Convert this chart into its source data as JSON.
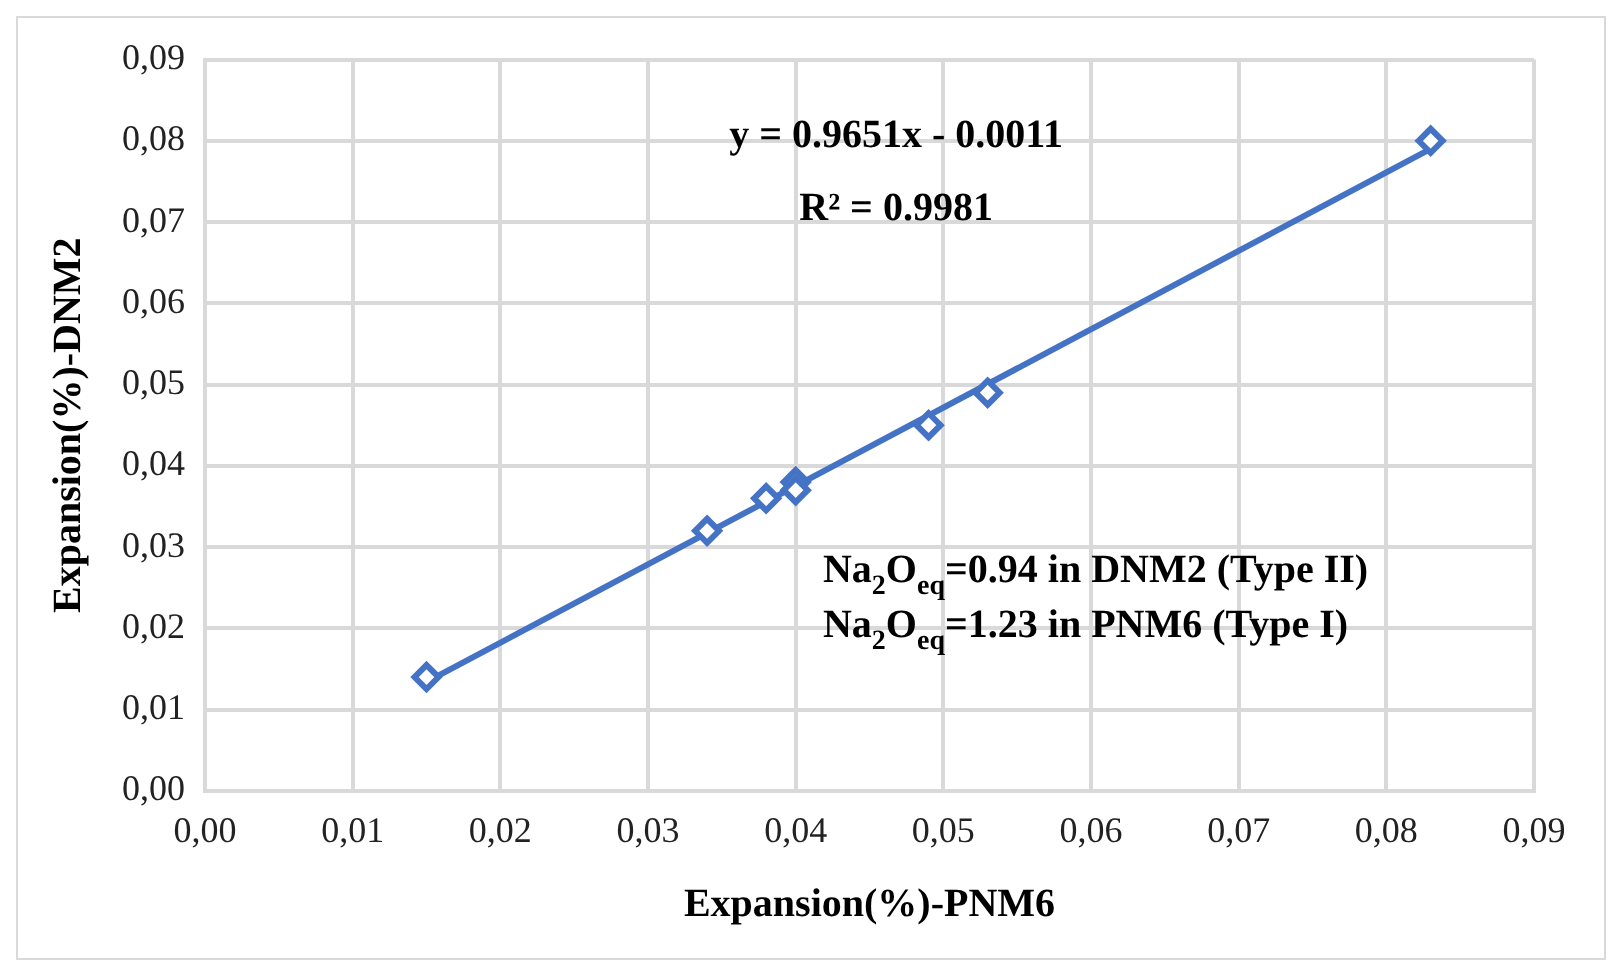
{
  "chart_data": {
    "type": "scatter",
    "xlabel": "Expansion(%)-PNM6",
    "ylabel": "Expansion(%)-DNM2",
    "x": [
      0.015,
      0.034,
      0.038,
      0.04,
      0.04,
      0.049,
      0.053,
      0.083
    ],
    "series": [
      {
        "color": "#4472c4",
        "marker": "diamond",
        "values": [
          0.014,
          0.032,
          0.036,
          0.038,
          0.037,
          0.045,
          0.049,
          0.08
        ]
      },
      {
        "type": "line",
        "color": "#4472c4",
        "marker": "none",
        "x": [
          0.015,
          0.083
        ],
        "values": [
          0.0134,
          0.079
        ]
      }
    ],
    "xlim": [
      0,
      0.09
    ],
    "xticks": [
      {
        "value": 0,
        "label": "0,00"
      },
      {
        "value": 0.01,
        "label": "0,01"
      },
      {
        "value": 0.02,
        "label": "0,02"
      },
      {
        "value": 0.03,
        "label": "0,03"
      },
      {
        "value": 0.04,
        "label": "0,04"
      },
      {
        "value": 0.05,
        "label": "0,05"
      },
      {
        "value": 0.06,
        "label": "0,06"
      },
      {
        "value": 0.07,
        "label": "0,07"
      },
      {
        "value": 0.08,
        "label": "0,08"
      },
      {
        "value": 0.09,
        "label": "0,09"
      }
    ],
    "ylim": [
      0,
      0.09
    ],
    "yticks": [
      {
        "value": 0,
        "label": "0,00"
      },
      {
        "value": 0.01,
        "label": "0,01"
      },
      {
        "value": 0.02,
        "label": "0,02"
      },
      {
        "value": 0.03,
        "label": "0,03"
      },
      {
        "value": 0.04,
        "label": "0,04"
      },
      {
        "value": 0.05,
        "label": "0,05"
      },
      {
        "value": 0.06,
        "label": "0,06"
      },
      {
        "value": 0.07,
        "label": "0,07"
      },
      {
        "value": 0.08,
        "label": "0,08"
      },
      {
        "value": 0.09,
        "label": "0,09"
      }
    ],
    "grid": true,
    "legend": false,
    "annotations": [
      "y = 0.9651x - 0.0011",
      "R² = 0.9981",
      "Na$_{2}$O$_{eq}$=0.94 in DNM2 (Type II)",
      "Na$_{2}$O$_{eq}$=1.23 in PNM6 (Type I)"
    ]
  }
}
